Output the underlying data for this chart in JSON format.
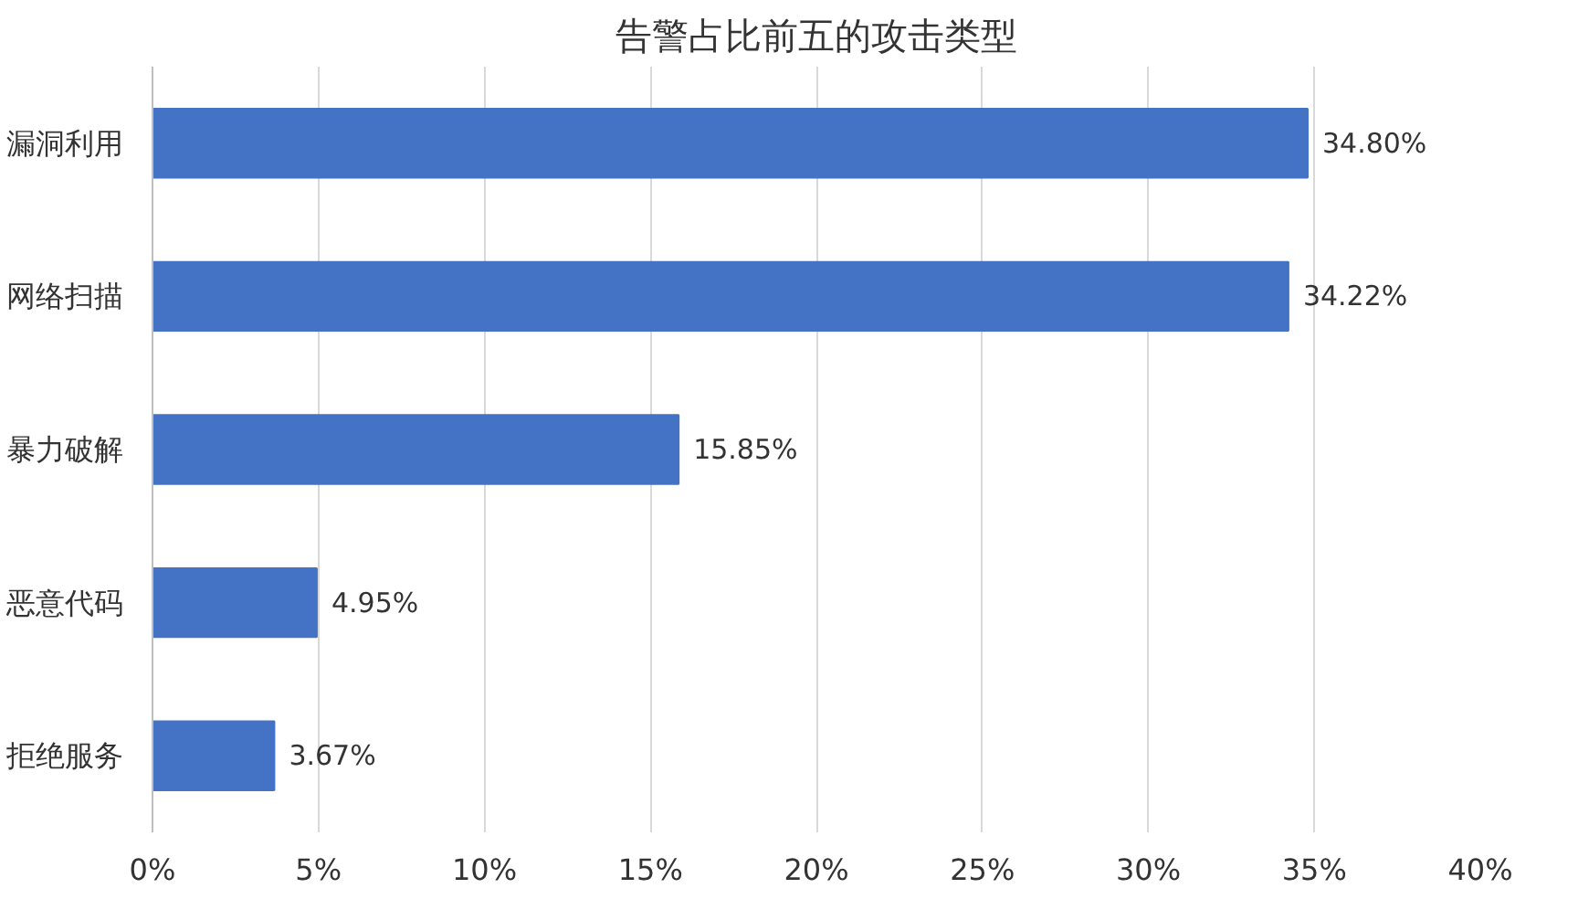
{
  "chart_data": {
    "type": "bar",
    "orientation": "horizontal",
    "title": "告警占比前五的攻击类型",
    "categories": [
      "漏洞利用",
      "网络扫描",
      "暴力破解",
      "恶意代码",
      "拒绝服务"
    ],
    "values": [
      34.8,
      34.22,
      15.85,
      4.95,
      3.67
    ],
    "value_labels": [
      "34.80%",
      "34.22%",
      "15.85%",
      "4.95%",
      "3.67%"
    ],
    "color": "#4472c4",
    "xlim": [
      0,
      40
    ],
    "xticks": [
      {
        "value": 0,
        "label": "0%"
      },
      {
        "value": 5,
        "label": "5%"
      },
      {
        "value": 10,
        "label": "10%"
      },
      {
        "value": 15,
        "label": "15%"
      },
      {
        "value": 20,
        "label": "20%"
      },
      {
        "value": 25,
        "label": "25%"
      },
      {
        "value": 30,
        "label": "30%"
      },
      {
        "value": 35,
        "label": "35%"
      },
      {
        "value": 40,
        "label": "40%"
      }
    ],
    "grid": "x"
  }
}
